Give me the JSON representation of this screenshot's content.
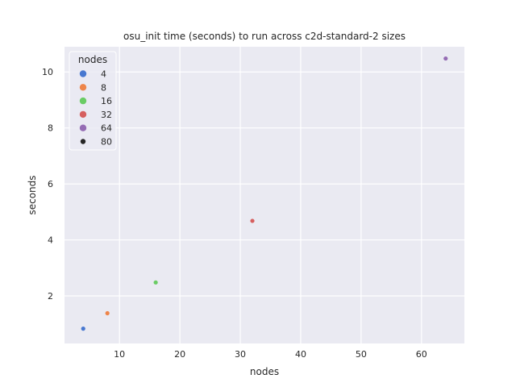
{
  "chart_data": {
    "type": "scatter",
    "title": "osu_init time (seconds) to run across c2d-standard-2 sizes",
    "xlabel": "nodes",
    "ylabel": "seconds",
    "xlim": [
      0.9,
      67.1
    ],
    "ylim": [
      0.3,
      10.9
    ],
    "xticks": [
      10,
      20,
      30,
      40,
      50,
      60
    ],
    "yticks": [
      2,
      4,
      6,
      8,
      10
    ],
    "grid": true,
    "background": "#EAEAF2",
    "legend": {
      "title": "nodes",
      "placement": "top-left",
      "entries": [
        {
          "label": "4",
          "color": "#4878D0"
        },
        {
          "label": "8",
          "color": "#EE854A"
        },
        {
          "label": "16",
          "color": "#6ACC64"
        },
        {
          "label": "32",
          "color": "#D65F5F"
        },
        {
          "label": "64",
          "color": "#956CB4"
        },
        {
          "label": "80",
          "color": "#262626"
        }
      ]
    },
    "points": [
      {
        "x": 4,
        "y": 0.83,
        "color": "#4878D0"
      },
      {
        "x": 8,
        "y": 1.38,
        "color": "#EE854A"
      },
      {
        "x": 16,
        "y": 2.48,
        "color": "#6ACC64"
      },
      {
        "x": 32,
        "y": 4.68,
        "color": "#D65F5F"
      },
      {
        "x": 64,
        "y": 10.48,
        "color": "#956CB4"
      }
    ]
  }
}
